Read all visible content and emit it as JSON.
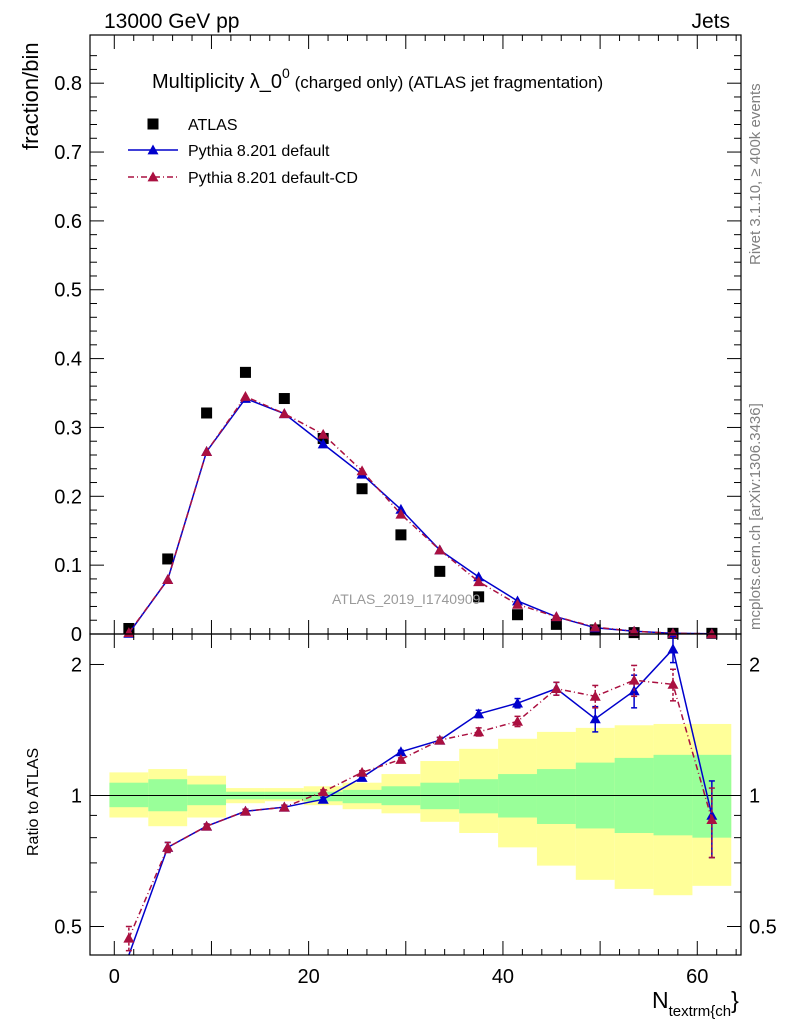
{
  "header": {
    "left": "13000 GeV pp",
    "right": "Jets"
  },
  "side_notes": {
    "rivet": "Rivet 3.1.10, ≥ 400k events",
    "mcplots": "mcplots.cern.ch [arXiv:1306.3436]"
  },
  "chart_data": [
    {
      "type": "scatter",
      "panel": "main",
      "title": "Multiplicity λ_0⁰ (charged only) (ATLAS jet fragmentation)",
      "title_main": "Multiplicity λ_0",
      "title_sup": "0",
      "title_rest": " (charged only) (ATLAS jet fragmentation)",
      "ylabel": "fraction/bin",
      "xlabel": "N_textrm{ch}",
      "xlabel_main": "N",
      "xlabel_sub": "textrm{ch",
      "xlabel_tail": "}",
      "xlim": [
        -2.5,
        64.5
      ],
      "ylim": [
        0,
        0.87
      ],
      "y_ticks": [
        0,
        0.1,
        0.2,
        0.3,
        0.4,
        0.5,
        0.6,
        0.7,
        0.8
      ],
      "y_tick_labels": [
        "0",
        "0.1",
        "0.2",
        "0.3",
        "0.4",
        "0.5",
        "0.6",
        "0.7",
        "0.8"
      ],
      "x": [
        1.5,
        5.5,
        9.5,
        13.5,
        17.5,
        21.5,
        25.5,
        29.5,
        33.5,
        37.5,
        41.5,
        45.5,
        49.5,
        53.5,
        57.5,
        61.5
      ],
      "annotation": "ATLAS_2019_I1740909",
      "legend_position": "top-left",
      "series": [
        {
          "name": "ATLAS",
          "color": "#000000",
          "marker": "square",
          "values": [
            0.008,
            0.109,
            0.321,
            0.38,
            0.342,
            0.284,
            0.211,
            0.144,
            0.091,
            0.054,
            0.028,
            0.014,
            0.006,
            0.002,
            0.001,
            0.001
          ]
        },
        {
          "name": "Pythia 8.201 default",
          "color": "#0000cc",
          "marker": "triangle",
          "line": "solid",
          "values": [
            0.001,
            0.079,
            0.265,
            0.342,
            0.32,
            0.276,
            0.232,
            0.181,
            0.122,
            0.083,
            0.048,
            0.025,
            0.009,
            0.004,
            0.001,
            0.0003
          ]
        },
        {
          "name": "Pythia 8.201 default-CD",
          "color": "#aa1040",
          "marker": "triangle",
          "line": "dash-dot",
          "values": [
            0.002,
            0.079,
            0.265,
            0.345,
            0.32,
            0.29,
            0.237,
            0.174,
            0.122,
            0.076,
            0.043,
            0.025,
            0.01,
            0.004,
            0.001,
            0.0003
          ]
        }
      ]
    },
    {
      "type": "line",
      "panel": "ratio",
      "ylabel": "Ratio to ATLAS",
      "y_scale": "log",
      "ylim": [
        0.43,
        2.35
      ],
      "y_ticks": [
        0.5,
        1,
        2
      ],
      "y_tick_labels": [
        "0.5",
        "1",
        "2"
      ],
      "x_ticks": [
        0,
        20,
        40,
        60
      ],
      "x_tick_labels": [
        "0",
        "20",
        "40",
        "60"
      ],
      "bin_edges": [
        -0.5,
        3.5,
        7.5,
        11.5,
        15.5,
        19.5,
        23.5,
        27.5,
        31.5,
        35.5,
        39.5,
        43.5,
        47.5,
        51.5,
        55.5,
        59.5,
        63.5
      ],
      "reference_line": 1,
      "bands": [
        {
          "name": "stat",
          "color": "#99ff99",
          "low": [
            0.94,
            0.92,
            0.95,
            0.98,
            0.98,
            0.97,
            0.96,
            0.95,
            0.93,
            0.91,
            0.89,
            0.86,
            0.84,
            0.82,
            0.81,
            0.8
          ],
          "high": [
            1.07,
            1.09,
            1.06,
            1.02,
            1.02,
            1.02,
            1.03,
            1.05,
            1.07,
            1.09,
            1.12,
            1.15,
            1.19,
            1.22,
            1.24,
            1.24
          ]
        },
        {
          "name": "total",
          "color": "#ffff99",
          "low": [
            0.89,
            0.85,
            0.89,
            0.96,
            0.97,
            0.95,
            0.93,
            0.91,
            0.87,
            0.82,
            0.76,
            0.69,
            0.64,
            0.61,
            0.59,
            0.62
          ],
          "high": [
            1.13,
            1.15,
            1.11,
            1.04,
            1.04,
            1.05,
            1.07,
            1.12,
            1.2,
            1.28,
            1.35,
            1.4,
            1.43,
            1.45,
            1.46,
            1.46
          ]
        }
      ],
      "series": [
        {
          "name": "Pythia 8.201 default",
          "color": "#0000cc",
          "marker": "triangle",
          "line": "solid",
          "values": [
            0.3,
            0.76,
            0.85,
            0.92,
            0.94,
            0.98,
            1.1,
            1.26,
            1.34,
            1.54,
            1.63,
            1.76,
            1.5,
            1.74,
            2.17,
            0.9
          ],
          "err_low": [
            0,
            0.02,
            0.01,
            0.01,
            0.01,
            0.01,
            0.01,
            0.01,
            0.02,
            0.03,
            0.04,
            0.06,
            0.1,
            0.15,
            0.15,
            0.18
          ],
          "err_high": [
            0,
            0.02,
            0.01,
            0.01,
            0.01,
            0.01,
            0.01,
            0.01,
            0.02,
            0.03,
            0.04,
            0.06,
            0.1,
            0.15,
            0.15,
            0.18
          ]
        },
        {
          "name": "Pythia 8.201 default-CD",
          "color": "#aa1040",
          "marker": "triangle",
          "line": "dash-dot",
          "values": [
            0.47,
            0.76,
            0.85,
            0.92,
            0.94,
            1.02,
            1.13,
            1.21,
            1.34,
            1.4,
            1.48,
            1.76,
            1.69,
            1.84,
            1.8,
            0.88
          ],
          "err_low": [
            0.03,
            0.02,
            0.01,
            0.01,
            0.01,
            0.01,
            0.01,
            0.01,
            0.02,
            0.03,
            0.04,
            0.06,
            0.1,
            0.15,
            0.15,
            0.16
          ],
          "err_high": [
            0.03,
            0.02,
            0.01,
            0.01,
            0.01,
            0.01,
            0.01,
            0.01,
            0.02,
            0.03,
            0.04,
            0.06,
            0.1,
            0.15,
            0.15,
            0.16
          ]
        }
      ]
    }
  ]
}
